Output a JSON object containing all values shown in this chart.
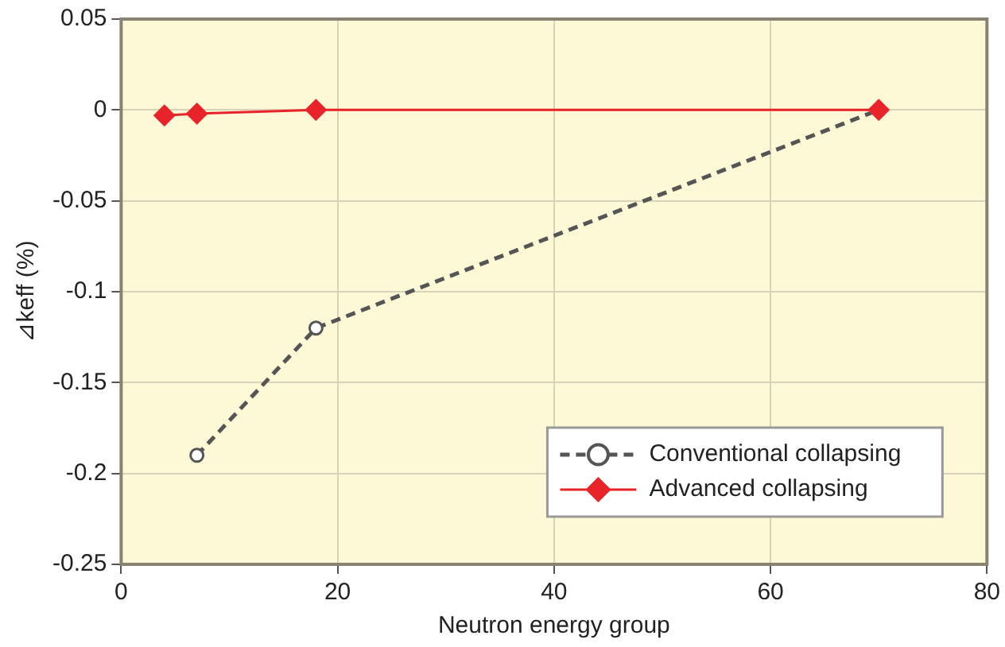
{
  "chart_data": {
    "type": "line",
    "xlabel": "Neutron energy group",
    "ylabel": "⊿keff (%)",
    "xlim": [
      0,
      80
    ],
    "xticks": [
      0,
      20,
      40,
      60,
      80
    ],
    "ylim": [
      -0.25,
      0.05
    ],
    "yticks": [
      0.05,
      0,
      -0.05,
      -0.1,
      -0.15,
      -0.2,
      -0.25
    ],
    "grid": true,
    "legend": "bottom right",
    "marker": "diamond",
    "series": [
      {
        "name": "Conventional collapsing",
        "color": "#555555",
        "line_style": "dashed",
        "marker": "circle",
        "x": [
          7,
          18,
          70
        ],
        "values": [
          -0.19,
          -0.12,
          0
        ]
      },
      {
        "name": "Advanced collapsing",
        "color": "#e8232a",
        "line_style": "solid",
        "x": [
          4,
          7,
          18,
          70
        ],
        "values": [
          -0.003,
          -0.002,
          0,
          0
        ]
      }
    ]
  }
}
